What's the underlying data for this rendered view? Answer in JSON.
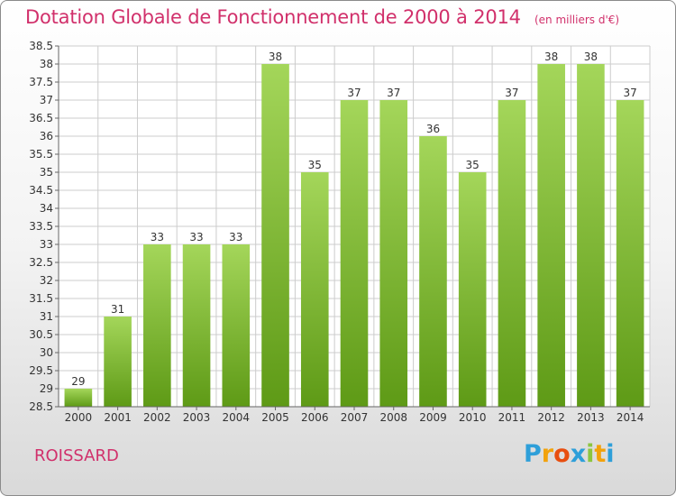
{
  "chart_data": {
    "type": "bar",
    "title": "Dotation Globale de Fonctionnement de 2000 à 2014",
    "subtitle": "(en milliers d'€)",
    "categories": [
      "2000",
      "2001",
      "2002",
      "2003",
      "2004",
      "2005",
      "2006",
      "2007",
      "2008",
      "2009",
      "2010",
      "2011",
      "2012",
      "2013",
      "2014"
    ],
    "values": [
      29,
      31,
      33,
      33,
      33,
      38,
      35,
      37,
      37,
      36,
      35,
      37,
      38,
      38,
      37
    ],
    "ylim": [
      28.5,
      38.5
    ],
    "yticks": [
      "28.5",
      "29",
      "29.5",
      "30",
      "30.5",
      "31",
      "31.5",
      "32",
      "32.5",
      "33",
      "33.5",
      "34",
      "34.5",
      "35",
      "35.5",
      "36",
      "36.5",
      "37",
      "37.5",
      "38",
      "38.5"
    ],
    "grid": true,
    "bar_color_top": "#a4d65a",
    "bar_color_bottom": "#5e9a16"
  },
  "commune": "ROISSARD",
  "logo": {
    "letters": [
      "P",
      "r",
      "o",
      "x",
      "i",
      "t",
      "i"
    ],
    "colors": [
      "#2e9fd9",
      "#f2a20c",
      "#e84e0f",
      "#2e9fd9",
      "#8cc63f",
      "#f2a20c",
      "#2e9fd9"
    ]
  },
  "colors": {
    "title": "#d1306b",
    "grid": "#cccccc",
    "axis": "#666666"
  }
}
